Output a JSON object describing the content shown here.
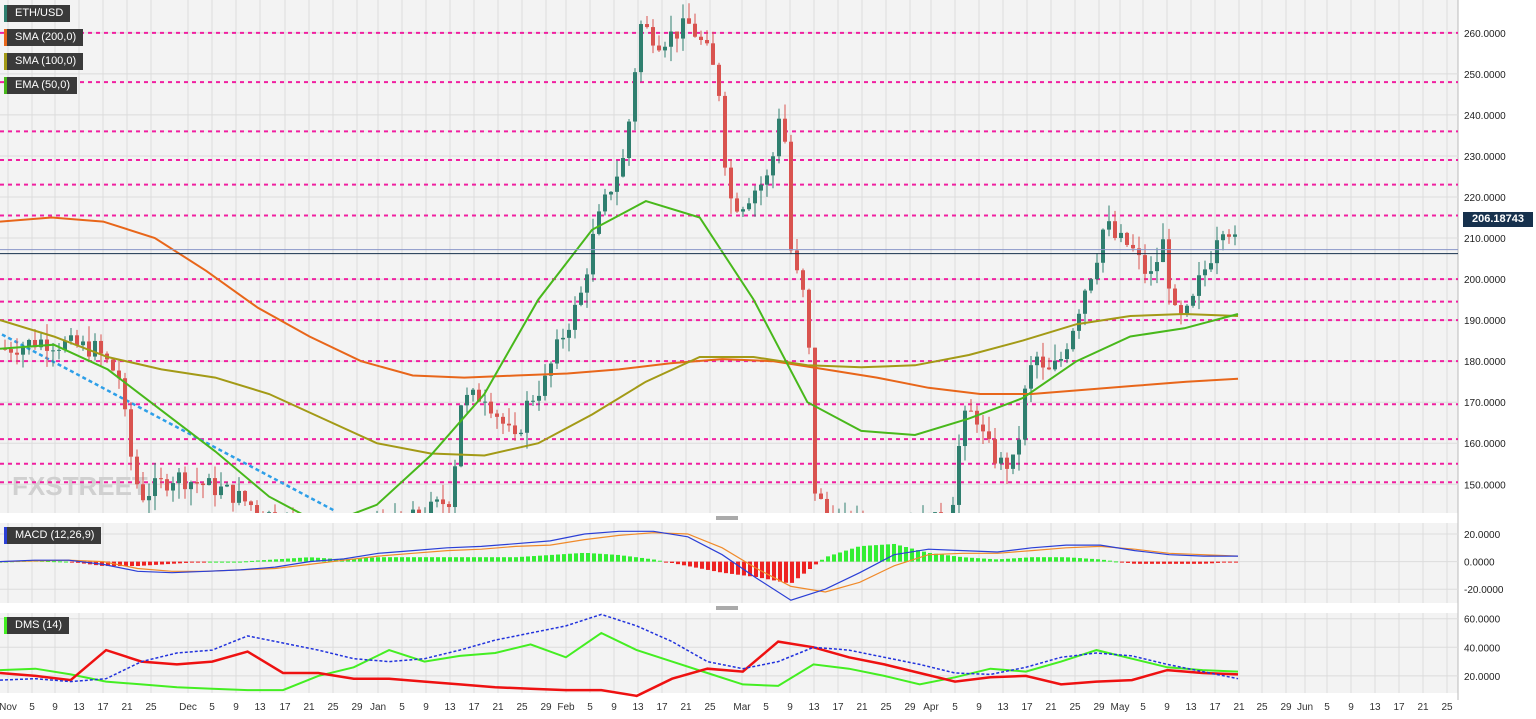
{
  "legend": {
    "pair": "ETH/USD",
    "sma200": "SMA (200,0)",
    "sma100": "SMA (100,0)",
    "ema50": "EMA (50,0)",
    "macd": "MACD (12,26,9)",
    "dms": "DMS (14)"
  },
  "watermark": "FXSTREET",
  "current_price": "206.18743",
  "colors": {
    "background": "#f3f3f3",
    "up_candle": "#2f7f6f",
    "down_candle": "#d9534f",
    "support_resistance": "#f020a0",
    "sma200": "#e8661a",
    "sma100": "#a39a16",
    "ema50": "#48b81b",
    "trendline": "#2e9fe8",
    "price_line": "#17314d",
    "macd_line": "#2b3fd6",
    "signal_line": "#f08a2a",
    "hist_pos": "#33ee33",
    "hist_neg": "#ee2222",
    "dms_plus": "#44ee22",
    "dms_minus": "#ee1111",
    "adx": "#2233dd"
  },
  "chart_data": [
    {
      "type": "candlestick",
      "title": "ETH/USD",
      "ylim": [
        143,
        268
      ],
      "y_ticks": [
        "260.0000",
        "250.0000",
        "240.0000",
        "230.0000",
        "220.0000",
        "210.0000",
        "200.0000",
        "190.0000",
        "180.0000",
        "170.0000",
        "160.0000",
        "150.0000"
      ],
      "horizontal_levels": [
        260,
        248,
        236,
        229,
        223,
        215.5,
        200,
        194.5,
        190,
        180,
        169.5,
        161,
        155,
        150.5
      ],
      "current_price": 206.18743,
      "series": [
        {
          "name": "SMA (200,0)",
          "values": [
            214.0,
            215.0,
            214.0,
            210.0,
            202.0,
            193.0,
            186.0,
            180.0,
            176.5,
            176.0,
            176.5,
            177.0,
            178.0,
            179.5,
            180.5,
            180.0,
            178.0,
            176.0,
            173.5,
            172.0,
            172.0,
            173.0,
            174.0,
            175.0,
            175.7
          ]
        },
        {
          "name": "SMA (100,0)",
          "values": [
            190.0,
            186.0,
            181.0,
            178.0,
            176.0,
            172.0,
            166.0,
            160.0,
            157.5,
            157.0,
            160.0,
            167.0,
            175.0,
            181.0,
            181.0,
            179.0,
            178.5,
            179.0,
            181.5,
            185.0,
            189.0,
            191.0,
            191.5,
            191.0
          ]
        },
        {
          "name": "EMA (50,0)",
          "values": [
            183.0,
            184.0,
            178.0,
            168.0,
            158.0,
            147.0,
            140.0,
            145.0,
            157.0,
            172.0,
            195.0,
            212.0,
            219.0,
            215.0,
            195.0,
            170.0,
            163.0,
            162.0,
            166.0,
            171.0,
            180.0,
            186.0,
            188.0,
            191.5
          ]
        }
      ]
    },
    {
      "type": "line",
      "title": "MACD (12,26,9)",
      "ylim": [
        -30,
        28
      ],
      "y_ticks": [
        "20.0000",
        "0.0000",
        "-20.0000"
      ],
      "series": [
        {
          "name": "MACD",
          "values": [
            0,
            1,
            1,
            -2,
            -7,
            -8,
            -7,
            -6,
            -4,
            0,
            2,
            6,
            8,
            10,
            11,
            13,
            15,
            20,
            22,
            22,
            18,
            5,
            -12,
            -28,
            -20,
            -8,
            5,
            9,
            8,
            7,
            10,
            12,
            12,
            8,
            5,
            4,
            4
          ]
        },
        {
          "name": "Signal",
          "values": [
            0,
            0.5,
            1,
            0,
            -5,
            -7,
            -7,
            -6,
            -5,
            -2,
            1,
            4,
            6,
            8,
            9,
            11,
            12,
            16,
            19,
            21,
            20,
            10,
            -5,
            -18,
            -22,
            -15,
            -3,
            5,
            6,
            6,
            8,
            10,
            11,
            9,
            6,
            5,
            4
          ]
        }
      ]
    },
    {
      "type": "line",
      "title": "DMS (14)",
      "ylim": [
        8,
        64
      ],
      "y_ticks": [
        "60.0000",
        "40.0000",
        "20.0000"
      ],
      "series": [
        {
          "name": "+DI",
          "values": [
            24,
            25,
            21,
            16,
            14,
            12,
            11,
            10,
            10,
            20,
            26,
            38,
            30,
            34,
            36,
            42,
            33,
            50,
            38,
            30,
            22,
            14,
            13,
            28,
            25,
            20,
            14,
            19,
            25,
            23,
            30,
            38,
            32,
            26,
            24,
            23
          ]
        },
        {
          "name": "-DI",
          "values": [
            22,
            20,
            17,
            38,
            30,
            28,
            30,
            37,
            22,
            22,
            18,
            18,
            16,
            14,
            12,
            11,
            10,
            10,
            6,
            18,
            25,
            23,
            44,
            40,
            33,
            28,
            22,
            16,
            19,
            20,
            14,
            16,
            17,
            24,
            22,
            21
          ]
        },
        {
          "name": "ADX",
          "values": [
            17,
            18,
            16,
            18,
            30,
            36,
            38,
            48,
            43,
            38,
            32,
            30,
            32,
            38,
            45,
            50,
            55,
            63,
            55,
            44,
            30,
            25,
            30,
            40,
            38,
            33,
            28,
            22,
            21,
            26,
            33,
            36,
            34,
            28,
            23,
            18
          ]
        }
      ]
    }
  ],
  "x_axis": {
    "labels": [
      "Nov",
      "5",
      "9",
      "13",
      "17",
      "21",
      "25",
      "Dec",
      "5",
      "9",
      "13",
      "17",
      "21",
      "25",
      "29",
      "Jan",
      "5",
      "9",
      "13",
      "17",
      "21",
      "25",
      "29",
      "Feb",
      "5",
      "9",
      "13",
      "17",
      "21",
      "25",
      "Mar",
      "5",
      "9",
      "13",
      "17",
      "21",
      "25",
      "29",
      "Apr",
      "5",
      "9",
      "13",
      "17",
      "21",
      "25",
      "29",
      "May",
      "5",
      "9",
      "13",
      "17",
      "21",
      "25",
      "29",
      "Jun",
      "5",
      "9",
      "13",
      "17",
      "21",
      "25"
    ],
    "positions": [
      8,
      32,
      55,
      79,
      103,
      127,
      151,
      188,
      212,
      236,
      260,
      285,
      309,
      333,
      357,
      378,
      402,
      426,
      450,
      474,
      498,
      522,
      546,
      566,
      590,
      614,
      638,
      662,
      686,
      710,
      742,
      766,
      790,
      814,
      838,
      862,
      886,
      910,
      931,
      955,
      979,
      1003,
      1027,
      1051,
      1075,
      1099,
      1120,
      1143,
      1167,
      1191,
      1215,
      1239,
      1262,
      1286,
      1305,
      1327,
      1351,
      1375,
      1399,
      1423,
      1447
    ]
  }
}
